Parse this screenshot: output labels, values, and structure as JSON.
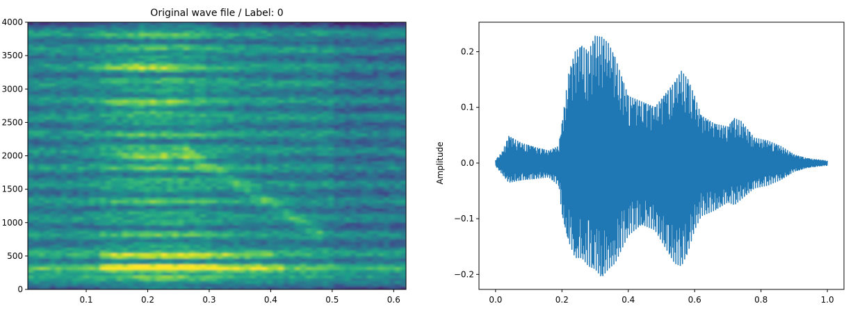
{
  "figure": {
    "background": "#ffffff",
    "line_color": "#1f77b4"
  },
  "chart_data": [
    {
      "type": "heatmap",
      "name": "spectrogram",
      "title": "Original wave file / Label: 0",
      "xlabel": "",
      "ylabel": "",
      "xlim": [
        0.005,
        0.62
      ],
      "ylim": [
        0,
        4000
      ],
      "x_ticks": [
        0.1,
        0.2,
        0.3,
        0.4,
        0.5,
        0.6
      ],
      "x_tick_labels": [
        "0.1",
        "0.2",
        "0.3",
        "0.4",
        "0.5",
        "0.6"
      ],
      "y_ticks": [
        0,
        500,
        1000,
        1500,
        2000,
        2500,
        3000,
        3500,
        4000
      ],
      "y_tick_labels": [
        "0",
        "500",
        "1000",
        "1500",
        "2000",
        "2500",
        "3000",
        "3500",
        "4000"
      ],
      "colormap": "viridis",
      "grid": false,
      "description": "Harmonic bands of a voiced utterance; strongest energy ~150–550 Hz between 0.13–0.40 s, bright formant near 2000 Hz and 2700–3400 Hz around 0.13–0.27 s, harmonics descending in frequency from 0.27 to 0.47 s.",
      "bright_regions": [
        {
          "x": [
            0.13,
            0.4
          ],
          "y": [
            280,
            360
          ],
          "level": "max"
        },
        {
          "x": [
            0.13,
            0.38
          ],
          "y": [
            470,
            540
          ],
          "level": "max"
        },
        {
          "x": [
            0.05,
            0.62
          ],
          "y": [
            160,
            220
          ],
          "level": "high"
        },
        {
          "x": [
            0.14,
            0.27
          ],
          "y": [
            1950,
            2050
          ],
          "level": "high"
        },
        {
          "x": [
            0.14,
            0.26
          ],
          "y": [
            2700,
            2800
          ],
          "level": "high"
        },
        {
          "x": [
            0.14,
            0.26
          ],
          "y": [
            3300,
            3400
          ],
          "level": "high"
        },
        {
          "x": [
            0.28,
            0.34
          ],
          "y": [
            1500,
            1600
          ],
          "level": "medium"
        },
        {
          "x": [
            0.34,
            0.42
          ],
          "y": [
            1100,
            1200
          ],
          "level": "medium"
        },
        {
          "x": [
            0.4,
            0.47
          ],
          "y": [
            880,
            960
          ],
          "level": "medium"
        }
      ]
    },
    {
      "type": "line",
      "name": "waveform",
      "title": "",
      "xlabel": "",
      "ylabel": "Amplitude",
      "xlim": [
        -0.05,
        1.05
      ],
      "ylim": [
        -0.227,
        0.253
      ],
      "x_ticks": [
        0.0,
        0.2,
        0.4,
        0.6,
        0.8,
        1.0
      ],
      "x_tick_labels": [
        "0.0",
        "0.2",
        "0.4",
        "0.6",
        "0.8",
        "1.0"
      ],
      "y_ticks": [
        -0.2,
        -0.1,
        0.0,
        0.1,
        0.2
      ],
      "y_tick_labels": [
        "−0.2",
        "−0.1",
        "0.0",
        "0.1",
        "0.2"
      ],
      "grid": false,
      "series": [
        {
          "name": "amplitude",
          "color": "#1f77b4",
          "envelope": {
            "x": [
              0.0,
              0.02,
              0.04,
              0.08,
              0.12,
              0.16,
              0.19,
              0.2,
              0.22,
              0.24,
              0.26,
              0.28,
              0.3,
              0.32,
              0.34,
              0.36,
              0.4,
              0.44,
              0.48,
              0.52,
              0.54,
              0.56,
              0.58,
              0.6,
              0.62,
              0.66,
              0.7,
              0.72,
              0.74,
              0.78,
              0.82,
              0.86,
              0.9,
              0.94,
              1.0
            ],
            "upper": [
              0.005,
              0.02,
              0.048,
              0.035,
              0.028,
              0.022,
              0.03,
              0.07,
              0.16,
              0.2,
              0.21,
              0.2,
              0.228,
              0.226,
              0.215,
              0.19,
              0.12,
              0.11,
              0.1,
              0.13,
              0.145,
              0.165,
              0.15,
              0.12,
              0.085,
              0.07,
              0.065,
              0.08,
              0.075,
              0.045,
              0.04,
              0.03,
              0.015,
              0.008,
              0.004
            ],
            "lower": [
              -0.005,
              -0.02,
              -0.035,
              -0.03,
              -0.028,
              -0.025,
              -0.04,
              -0.09,
              -0.14,
              -0.17,
              -0.17,
              -0.185,
              -0.19,
              -0.205,
              -0.19,
              -0.18,
              -0.13,
              -0.11,
              -0.12,
              -0.16,
              -0.18,
              -0.185,
              -0.16,
              -0.12,
              -0.095,
              -0.085,
              -0.07,
              -0.075,
              -0.065,
              -0.045,
              -0.04,
              -0.03,
              -0.015,
              -0.008,
              -0.004
            ]
          }
        }
      ]
    }
  ]
}
